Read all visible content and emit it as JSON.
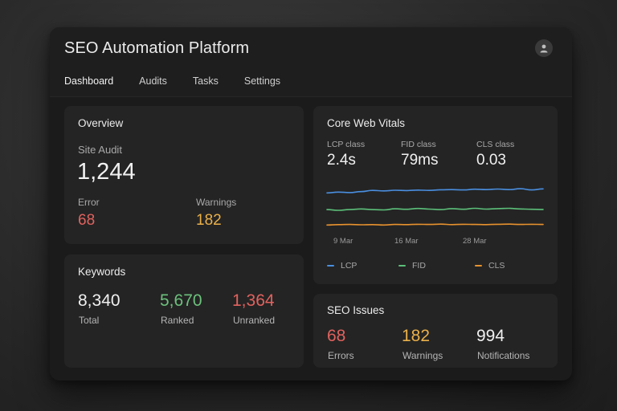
{
  "app": {
    "title": "SEO Automation Platform"
  },
  "tabs": [
    {
      "label": "Dashboard",
      "active": true
    },
    {
      "label": "Audits",
      "active": false
    },
    {
      "label": "Tasks",
      "active": false
    },
    {
      "label": "Settings",
      "active": false
    }
  ],
  "overview": {
    "title": "Overview",
    "site_audit_label": "Site Audit",
    "site_audit_value": "1,244",
    "error_label": "Error",
    "error_value": "68",
    "warnings_label": "Warnings",
    "warnings_value": "182"
  },
  "keywords": {
    "title": "Keywords",
    "total_value": "8,340",
    "total_label": "Total",
    "ranked_value": "5,670",
    "ranked_label": "Ranked",
    "unranked_value": "1,364",
    "unranked_label": "Unranked"
  },
  "cwv": {
    "title": "Core Web Vitals",
    "lcp_label": "LCP class",
    "lcp_value": "2.4s",
    "fid_label": "FID class",
    "fid_value": "79ms",
    "cls_label": "CLS class",
    "cls_value": "0.03",
    "x_ticks": [
      "9 Mar",
      "16 Mar",
      "28 Mar"
    ],
    "legend": [
      "LCP",
      "FID",
      "CLS"
    ]
  },
  "issues": {
    "title": "SEO Issues",
    "errors_value": "68",
    "errors_label": "Errors",
    "warnings_value": "182",
    "warnings_label": "Warnings",
    "notifications_value": "994",
    "notifications_label": "Notifications"
  },
  "colors": {
    "lcp": "#4a8fe0",
    "fid": "#5cc07a",
    "cls": "#e8922e",
    "error_red": "#e0625e",
    "warning_orange": "#eab04a",
    "ranked_green": "#6cc17c"
  },
  "chart_data": {
    "type": "line",
    "title": "",
    "xlabel": "",
    "ylabel": "",
    "x_ticks": [
      "9 Mar",
      "16 Mar",
      "28 Mar"
    ],
    "grid": false,
    "legend_position": "bottom",
    "series": [
      {
        "name": "LCP",
        "values": [
          2.3,
          2.35,
          2.32,
          2.38,
          2.45,
          2.42,
          2.46,
          2.44,
          2.47,
          2.45,
          2.49,
          2.5,
          2.48,
          2.52,
          2.5,
          2.53,
          2.5,
          2.55,
          2.48,
          2.54
        ]
      },
      {
        "name": "FID",
        "values": [
          1.3,
          1.26,
          1.3,
          1.34,
          1.3,
          1.28,
          1.35,
          1.32,
          1.37,
          1.33,
          1.3,
          1.36,
          1.32,
          1.38,
          1.33,
          1.36,
          1.38,
          1.34,
          1.32,
          1.31
        ]
      },
      {
        "name": "CLS",
        "values": [
          0.38,
          0.4,
          0.41,
          0.39,
          0.4,
          0.38,
          0.41,
          0.4,
          0.42,
          0.41,
          0.43,
          0.4,
          0.42,
          0.41,
          0.4,
          0.42,
          0.43,
          0.41,
          0.42,
          0.41
        ]
      }
    ]
  }
}
